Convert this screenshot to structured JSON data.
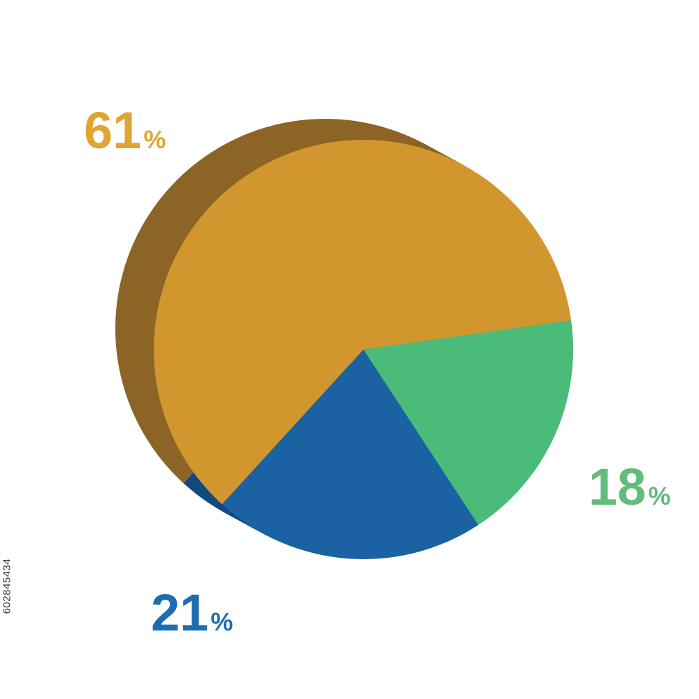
{
  "chart_data": {
    "type": "pie",
    "style": "3d",
    "categories": [
      "61%",
      "21%",
      "18%"
    ],
    "values": [
      61,
      21,
      18
    ],
    "slices": [
      {
        "label_value": "61",
        "label_unit": "%",
        "value": 61,
        "color": "#D2962F",
        "side_color": "#8C6426",
        "label_color": "#E0A534"
      },
      {
        "label_value": "21",
        "label_unit": "%",
        "value": 21,
        "color": "#1A62A1",
        "side_color": "#124A80",
        "label_color": "#1E6DB2"
      },
      {
        "label_value": "18",
        "label_unit": "%",
        "value": 18,
        "color": "#4BBB79",
        "side_color": "#21A760",
        "label_color": "#63BB7D"
      }
    ]
  },
  "watermark": {
    "stock_id": "602845434"
  }
}
